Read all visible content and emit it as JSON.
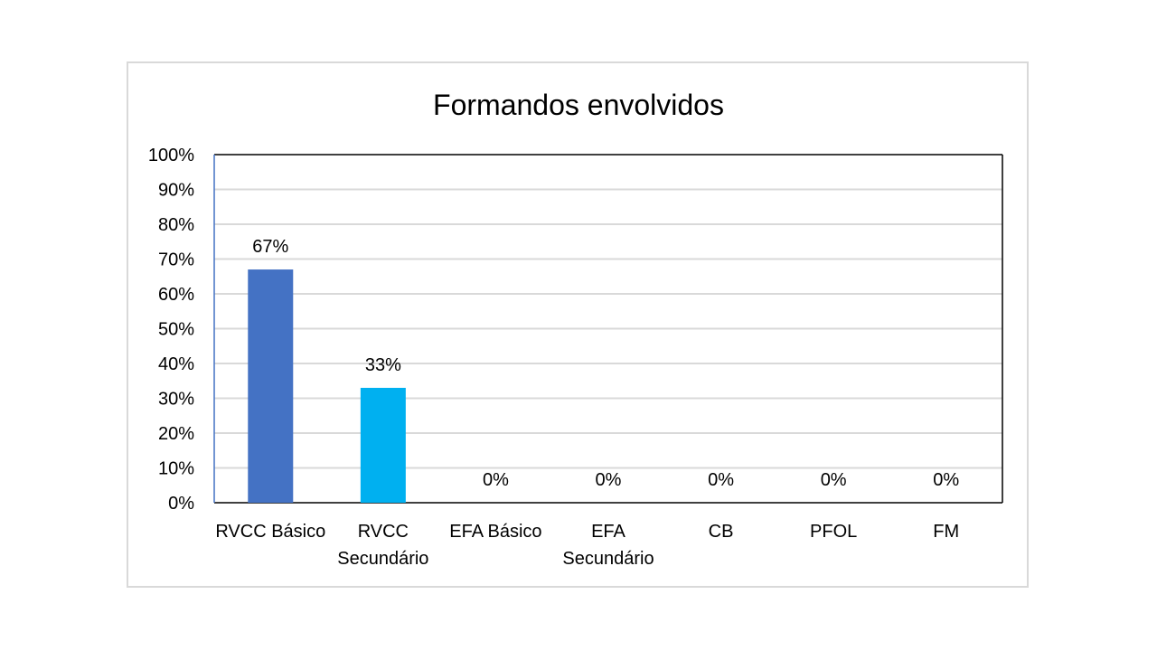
{
  "chart_data": {
    "type": "bar",
    "title": "Formandos envolvidos",
    "categories": [
      [
        "RVCC Básico"
      ],
      [
        "RVCC",
        "Secundário"
      ],
      [
        "EFA Básico"
      ],
      [
        "EFA",
        "Secundário"
      ],
      [
        "CB"
      ],
      [
        "PFOL"
      ],
      [
        "FM"
      ]
    ],
    "values": [
      67,
      33,
      0,
      0,
      0,
      0,
      0
    ],
    "data_labels": [
      "67%",
      "33%",
      "0%",
      "0%",
      "0%",
      "0%",
      "0%"
    ],
    "bar_colors": [
      "#4472C4",
      "#00B0F0",
      "#4472C4",
      "#4472C4",
      "#4472C4",
      "#4472C4",
      "#4472C4"
    ],
    "ylim": [
      0,
      100
    ],
    "yticks": [
      0,
      10,
      20,
      30,
      40,
      50,
      60,
      70,
      80,
      90,
      100
    ],
    "ytick_labels": [
      "0%",
      "10%",
      "20%",
      "30%",
      "40%",
      "50%",
      "60%",
      "70%",
      "80%",
      "90%",
      "100%"
    ],
    "grid": true,
    "legend": "none"
  }
}
